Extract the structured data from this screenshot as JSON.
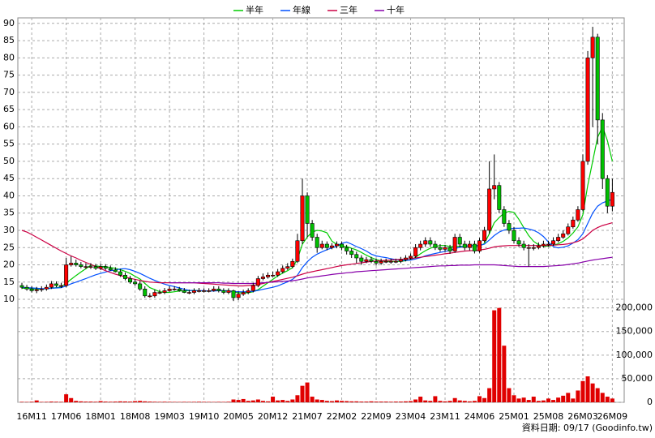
{
  "chart_data": {
    "type": "candlestick",
    "categories": [
      null,
      null,
      "16M11",
      null,
      null,
      null,
      null,
      null,
      null,
      "17M06",
      null,
      null,
      null,
      null,
      null,
      null,
      "18M01",
      null,
      null,
      null,
      null,
      null,
      null,
      "18M08",
      null,
      null,
      null,
      null,
      null,
      null,
      "19M03",
      null,
      null,
      null,
      null,
      null,
      null,
      "19M10",
      null,
      null,
      null,
      null,
      null,
      null,
      "20M05",
      null,
      null,
      null,
      null,
      null,
      null,
      "20M12",
      null,
      null,
      null,
      null,
      null,
      null,
      "21M07",
      null,
      null,
      null,
      null,
      null,
      null,
      "22M02",
      null,
      null,
      null,
      null,
      null,
      null,
      "22M09",
      null,
      null,
      null,
      null,
      null,
      null,
      "23M04",
      null,
      null,
      null,
      null,
      null,
      null,
      "23M11",
      null,
      null,
      null,
      null,
      null,
      null,
      "24M06",
      null,
      null,
      null,
      null,
      null,
      null,
      "25M01",
      null,
      null,
      null,
      null,
      null,
      null,
      "25M08",
      null,
      null,
      null,
      null,
      null,
      null,
      "26M03",
      null,
      null,
      null,
      null,
      null,
      "26M09"
    ],
    "open": [
      14,
      13.5,
      13,
      12.5,
      12.8,
      13,
      13.5,
      14.5,
      14,
      14,
      20,
      20.5,
      20,
      19.5,
      19.5,
      19.5,
      19,
      19.5,
      19,
      18.5,
      18,
      17,
      16,
      15,
      14.5,
      13,
      11,
      11,
      12,
      12,
      12.5,
      13,
      13,
      12.5,
      12,
      12,
      12.5,
      12.5,
      12.5,
      12.5,
      13,
      12.5,
      12,
      12.5,
      10.5,
      11.5,
      12,
      12.5,
      14,
      16,
      16.5,
      17,
      17,
      18,
      19,
      19.5,
      21,
      27,
      40,
      32,
      28,
      25,
      26,
      25,
      25.5,
      26,
      25,
      24,
      23,
      22,
      21,
      21.5,
      21,
      20.5,
      21,
      21,
      21,
      21,
      21.5,
      22,
      22.5,
      25,
      26,
      27,
      26,
      25,
      24.5,
      25,
      24,
      28,
      26,
      25,
      26,
      24,
      27,
      30,
      42,
      43,
      36,
      32,
      30,
      27,
      26,
      25,
      25,
      25,
      25.5,
      26,
      26,
      27,
      28,
      29,
      31,
      33,
      36,
      50,
      80,
      86,
      62,
      45,
      37
    ],
    "high": [
      14.8,
      14.2,
      13.8,
      13.6,
      13.8,
      14.3,
      15.3,
      15.2,
      14.8,
      22,
      22.5,
      21.5,
      20.8,
      20.5,
      20.5,
      20.3,
      20.3,
      20.2,
      19.8,
      19.3,
      18.8,
      17.8,
      16.8,
      15.8,
      15.3,
      13.8,
      11.8,
      12.8,
      12.8,
      13.3,
      13.8,
      13.8,
      13.6,
      13.3,
      12.8,
      13.2,
      13.3,
      13.2,
      13.2,
      13.8,
      13.8,
      13.2,
      13.2,
      12.8,
      12.3,
      12.8,
      13.2,
      14.8,
      16.8,
      17.5,
      17.8,
      18,
      18.8,
      19.8,
      20.5,
      21.8,
      29,
      45,
      41,
      33,
      29,
      27,
      26.8,
      26.3,
      26.8,
      26.8,
      25.8,
      24.8,
      23.8,
      22.8,
      22.3,
      22.3,
      21.8,
      21.8,
      21.8,
      21.8,
      21.8,
      22.3,
      22.8,
      23.3,
      26,
      27,
      28,
      28,
      27,
      26,
      25.8,
      25.8,
      29,
      29,
      27,
      27,
      27,
      27.8,
      31,
      50,
      52,
      44,
      37,
      33,
      31,
      28,
      27,
      26,
      26,
      26.5,
      27,
      27,
      28,
      29,
      30,
      32,
      34,
      37,
      52,
      82,
      89,
      87,
      64,
      46,
      45
    ],
    "low": [
      13,
      12.5,
      12,
      11.8,
      12.2,
      12.5,
      13,
      13.5,
      13.3,
      13.5,
      19.5,
      19.5,
      19,
      18.8,
      18.8,
      18.5,
      18.5,
      18.5,
      18.3,
      17.8,
      16.5,
      15.5,
      14.5,
      14,
      12.5,
      10.5,
      10.5,
      10.5,
      11.5,
      11.5,
      12.2,
      12.5,
      12.2,
      11.8,
      11.5,
      11.5,
      12,
      12,
      12,
      12.2,
      12,
      11.5,
      11.5,
      9.5,
      9.8,
      11,
      11.5,
      12,
      13.5,
      15.5,
      16,
      16.5,
      16.5,
      17.5,
      18.5,
      19,
      20.5,
      26,
      28,
      27,
      23.5,
      24.5,
      24.2,
      24.5,
      24.8,
      24.2,
      23,
      22,
      20.5,
      20,
      20.5,
      20.5,
      19.8,
      20,
      20.5,
      20.3,
      20.5,
      20.5,
      21,
      21.5,
      22,
      24.2,
      25.2,
      25.2,
      24.3,
      23.8,
      23.8,
      23.2,
      23.5,
      25,
      24.2,
      24.2,
      23.3,
      23.5,
      26.5,
      29,
      39,
      35,
      31,
      29,
      26.2,
      25.2,
      24.2,
      19.5,
      24.2,
      24.5,
      25,
      25.3,
      25.5,
      26.5,
      27.5,
      28.5,
      30.5,
      32.5,
      35.5,
      49,
      60,
      55,
      42,
      35,
      35.5
    ],
    "close": [
      13.5,
      13,
      12.5,
      12.8,
      13,
      13.5,
      14.5,
      14,
      14,
      20,
      20.5,
      20,
      19.5,
      19.5,
      19.5,
      19,
      19.5,
      19,
      18.5,
      18,
      17,
      16,
      15,
      14.5,
      13,
      11,
      11,
      12,
      12,
      12.5,
      13,
      13,
      12.5,
      12,
      12,
      12.5,
      12.5,
      12.5,
      12.5,
      13,
      12.5,
      12,
      12.5,
      10.5,
      11.5,
      12,
      12.5,
      14,
      16,
      16.5,
      17,
      17,
      18,
      19,
      19.5,
      21,
      27,
      40,
      32,
      28,
      25,
      26,
      25,
      25.5,
      26,
      25,
      24,
      23,
      22,
      21,
      21.5,
      21,
      20.5,
      21,
      21,
      21,
      21,
      21.5,
      22,
      22.5,
      25,
      26,
      27,
      26,
      25,
      24.5,
      25,
      24,
      28,
      26,
      25,
      26,
      24,
      27,
      30,
      42,
      43,
      36,
      32,
      30,
      27,
      26,
      25,
      25,
      25,
      25.5,
      26,
      26,
      27,
      28,
      29,
      31,
      33,
      36,
      50,
      80,
      86,
      62,
      45,
      37,
      41
    ],
    "up_color": "#ff0000",
    "down_color": "#00c000",
    "ylim": [
      8.6,
      91.6
    ],
    "yticks": [
      10,
      15,
      20,
      25,
      30,
      35,
      40,
      45,
      50,
      55,
      60,
      65,
      70,
      75,
      80,
      85,
      90
    ],
    "grid": true,
    "series": [
      {
        "name": "半年",
        "color": "#00cc00",
        "values": [
          13.2,
          13.2,
          13.1,
          13,
          13,
          13.1,
          13.2,
          13.4,
          13.6,
          14.7,
          15.8,
          16.9,
          17.9,
          18.9,
          19.9,
          19.7,
          19.5,
          19.5,
          19.2,
          19,
          18.6,
          18.1,
          17.5,
          16.7,
          15.9,
          14.6,
          13.4,
          12.8,
          12.2,
          12,
          12,
          12.2,
          12.4,
          12.5,
          12.5,
          12.6,
          12.5,
          12.4,
          12.4,
          12.6,
          12.6,
          12.5,
          12.5,
          12.2,
          11.9,
          11.9,
          11.9,
          12.2,
          12.8,
          13.8,
          14.8,
          15.8,
          16.8,
          17.6,
          18.3,
          19.2,
          21.6,
          26,
          28.1,
          29.5,
          30,
          29.8,
          29.3,
          26.9,
          25.9,
          25.4,
          25.3,
          24.8,
          24.3,
          23.6,
          22.8,
          22.1,
          21.5,
          21.2,
          21,
          21,
          21,
          21,
          21.2,
          21.5,
          22.2,
          23.2,
          24.1,
          24.8,
          25.3,
          25.6,
          25.6,
          25.3,
          25.3,
          25.4,
          25.3,
          25.5,
          25.5,
          25.4,
          26.2,
          29,
          32.2,
          33.7,
          35,
          35.5,
          35.2,
          33.2,
          30.8,
          28.5,
          26.8,
          25.8,
          25.4,
          25.4,
          25.7,
          26.1,
          26.8,
          27.8,
          29.2,
          31,
          34.5,
          43,
          50,
          57,
          60,
          56,
          50
        ]
      },
      {
        "name": "年線",
        "color": "#0050ff",
        "values": [
          13.5,
          13.4,
          13.3,
          13.2,
          13.1,
          13.1,
          13.2,
          13.3,
          13.4,
          13.9,
          14.5,
          15,
          15.5,
          16,
          16.6,
          17.1,
          17.5,
          17.9,
          18.3,
          18.5,
          18.8,
          18.9,
          18.6,
          18.1,
          17.5,
          16.8,
          16.1,
          15.5,
          14.9,
          14.4,
          14,
          13.7,
          13.3,
          12.9,
          12.6,
          12.5,
          12.5,
          12.5,
          12.4,
          12.4,
          12.5,
          12.5,
          12.4,
          12.3,
          12.2,
          12.2,
          12.2,
          12.3,
          12.6,
          12.9,
          13.2,
          13.5,
          13.9,
          14.5,
          15.1,
          15.8,
          17,
          19.2,
          20.9,
          22.2,
          23.1,
          23.8,
          24.4,
          24.9,
          25.5,
          26.2,
          26.6,
          26,
          25.3,
          24.7,
          24,
          23.1,
          22.6,
          22.3,
          22.1,
          21.8,
          21.5,
          21.3,
          21.3,
          21.4,
          21.7,
          22.1,
          22.6,
          23,
          23.3,
          23.6,
          23.9,
          24.2,
          24.7,
          25.1,
          25.4,
          25.6,
          25.6,
          25.6,
          26,
          27.2,
          28.5,
          29.5,
          30.1,
          30.4,
          30.6,
          30.6,
          30.7,
          30.4,
          30,
          29.3,
          28.2,
          26.6,
          25.3,
          24.9,
          25.1,
          25.5,
          26.3,
          27.3,
          29,
          32,
          35,
          37,
          38,
          38.5,
          39
        ]
      },
      {
        "name": "三年",
        "color": "#cc0044",
        "values": [
          30,
          29.5,
          28.8,
          28,
          27.2,
          26.4,
          25.6,
          24.8,
          24,
          23.3,
          22.6,
          22,
          21.3,
          20.7,
          20.1,
          19.5,
          18.9,
          18.3,
          17.8,
          17.3,
          16.9,
          16.5,
          16.1,
          15.8,
          15.5,
          15.2,
          15,
          14.9,
          14.8,
          14.8,
          14.8,
          14.8,
          14.8,
          14.8,
          14.8,
          14.8,
          14.7,
          14.6,
          14.5,
          14.4,
          14.3,
          14.2,
          14.1,
          14,
          13.9,
          13.9,
          14,
          14.1,
          14.3,
          14.6,
          14.9,
          15.2,
          15.5,
          15.8,
          16.1,
          16.4,
          16.8,
          17.3,
          17.7,
          18,
          18.3,
          18.6,
          18.9,
          19.2,
          19.5,
          19.8,
          20,
          20.2,
          20.4,
          20.6,
          20.8,
          21,
          21.1,
          21.2,
          21.3,
          21.4,
          21.5,
          21.6,
          21.7,
          21.8,
          22,
          22.2,
          22.4,
          22.6,
          22.8,
          23,
          23.2,
          23.4,
          23.6,
          23.8,
          24,
          24.1,
          24.2,
          24.3,
          24.5,
          24.8,
          25.2,
          25.4,
          25.5,
          25.6,
          25.6,
          25.6,
          25.6,
          25.6,
          25.6,
          25.6,
          25.6,
          25.6,
          25.7,
          25.8,
          25.9,
          26.1,
          26.4,
          26.8,
          27.5,
          28.7,
          30,
          30.8,
          31.4,
          31.8,
          32.2
        ]
      },
      {
        "name": "十年",
        "color": "#8800aa",
        "values": [
          null,
          null,
          null,
          null,
          null,
          null,
          null,
          null,
          null,
          null,
          null,
          null,
          null,
          null,
          null,
          null,
          null,
          null,
          null,
          null,
          null,
          null,
          null,
          null,
          null,
          null,
          null,
          null,
          null,
          null,
          14.8,
          14.8,
          14.8,
          14.8,
          14.8,
          14.8,
          14.8,
          14.8,
          14.8,
          14.8,
          14.8,
          14.7,
          14.7,
          14.6,
          14.6,
          14.6,
          14.6,
          14.6,
          14.7,
          14.8,
          14.9,
          15,
          15.1,
          15.2,
          15.3,
          15.4,
          15.6,
          15.9,
          16.2,
          16.4,
          16.6,
          16.8,
          17,
          17.2,
          17.4,
          17.5,
          17.7,
          17.8,
          18,
          18.1,
          18.2,
          18.3,
          18.4,
          18.5,
          18.6,
          18.7,
          18.8,
          18.9,
          19,
          19.1,
          19.2,
          19.3,
          19.4,
          19.5,
          19.6,
          19.7,
          19.7,
          19.8,
          19.8,
          19.9,
          19.9,
          19.9,
          20,
          20,
          20,
          20,
          20,
          19.9,
          19.8,
          19.7,
          19.6,
          19.5,
          19.5,
          19.5,
          19.5,
          19.5,
          19.5,
          19.6,
          19.7,
          19.8,
          19.9,
          20.1,
          20.3,
          20.5,
          20.8,
          21.1,
          21.4,
          21.6,
          21.8,
          22,
          22.2
        ]
      }
    ],
    "volume": [
      1000,
      800,
      1200,
      4000,
      900,
      1000,
      1500,
      1200,
      1000,
      17000,
      9000,
      3000,
      2000,
      1500,
      1500,
      1200,
      2500,
      1500,
      1200,
      1500,
      2000,
      1800,
      1500,
      2500,
      3000,
      2000,
      1500,
      1200,
      1000,
      1200,
      1000,
      900,
      800,
      1000,
      900,
      1000,
      1200,
      1000,
      900,
      800,
      1000,
      900,
      1200,
      6000,
      5000,
      7000,
      3000,
      4000,
      6000,
      3000,
      2000,
      12000,
      4000,
      5000,
      3000,
      6000,
      15000,
      35000,
      42000,
      12000,
      6000,
      5000,
      3000,
      2500,
      4000,
      3000,
      2500,
      2000,
      2000,
      1500,
      1500,
      2000,
      1500,
      1500,
      1500,
      1200,
      1500,
      1500,
      2000,
      2500,
      6000,
      12000,
      4000,
      3000,
      13000,
      3000,
      2000,
      3000,
      9000,
      4000,
      3000,
      2000,
      3000,
      13000,
      9000,
      30000,
      195000,
      200000,
      120000,
      30000,
      15000,
      8000,
      10000,
      5000,
      12000,
      3000,
      4000,
      8000,
      5000,
      10000,
      14000,
      20000,
      8000,
      25000,
      45000,
      55000,
      40000,
      30000,
      20000,
      12000,
      8000
    ],
    "volume_color": "#e00000",
    "y2lim": [
      0,
      208000
    ],
    "y2ticks": [
      0,
      {
        "value": 50000,
        "label": "50,000"
      },
      {
        "value": 100000,
        "label": "100,000"
      },
      {
        "value": 150000,
        "label": "150,000"
      },
      {
        "value": 200000,
        "label": "200,000"
      }
    ],
    "source": "資料日期: 09/17 (Goodinfo.tw)"
  }
}
